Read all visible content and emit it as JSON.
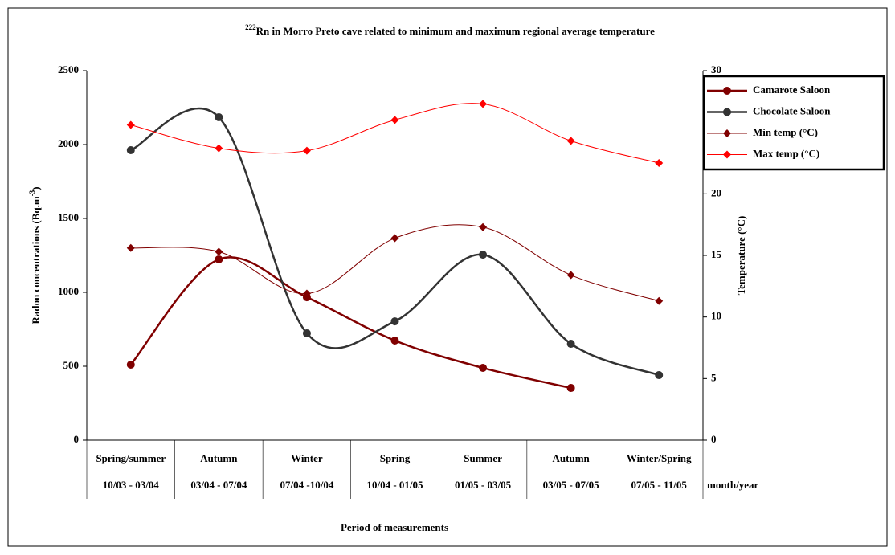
{
  "chart_data": {
    "type": "line",
    "title_superscript": "222",
    "title": "Rn in Morro Preto cave related to minimum and maximum regional average temperature",
    "y_label": "Radon concentrations (Bq.m",
    "y_label_superscript": "-3",
    "y_label_suffix": ")",
    "y2_label": "Temperature (°C)",
    "x_label": "Period of measurements",
    "period_unit": "month/year",
    "categories": [
      "Spring/summer",
      "Autumn",
      "Winter",
      "Spring",
      "Summer",
      "Autumn",
      "Winter/Spring"
    ],
    "periods": [
      "10/03 - 03/04",
      "03/04 - 07/04",
      "07/04  -10/04",
      "10/04 - 01/05",
      "01/05 - 03/05",
      "03/05 - 07/05",
      "07/05 - 11/05"
    ],
    "ylim": [
      0,
      2500
    ],
    "yticks": [
      0,
      500,
      1000,
      1500,
      2000,
      2500
    ],
    "y2lim": [
      0,
      30
    ],
    "y2ticks": [
      0,
      5,
      10,
      15,
      20,
      25,
      30
    ],
    "grid": false,
    "smooth": true,
    "legend": "right",
    "series": [
      {
        "name": "Camarote Saloon",
        "color": "#800000",
        "marker": "circle",
        "values": [
          511,
          1223,
          967,
          674,
          489,
          353,
          null
        ]
      },
      {
        "name": "Chocolate Saloon",
        "color": "#333333",
        "marker": "circle",
        "values": [
          1962,
          2185,
          723,
          804,
          1255,
          652,
          440
        ]
      },
      {
        "name": "Min temp (°C)",
        "color": "#800000",
        "marker": "diamond",
        "axis": "y2",
        "values": [
          15.6,
          15.3,
          11.9,
          16.4,
          17.3,
          13.4,
          11.3
        ]
      },
      {
        "name": "Max temp (°C)",
        "color": "#ff0000",
        "marker": "diamond",
        "axis": "y2",
        "values": [
          25.6,
          23.7,
          23.5,
          26.0,
          27.3,
          24.3,
          22.5
        ]
      }
    ]
  }
}
